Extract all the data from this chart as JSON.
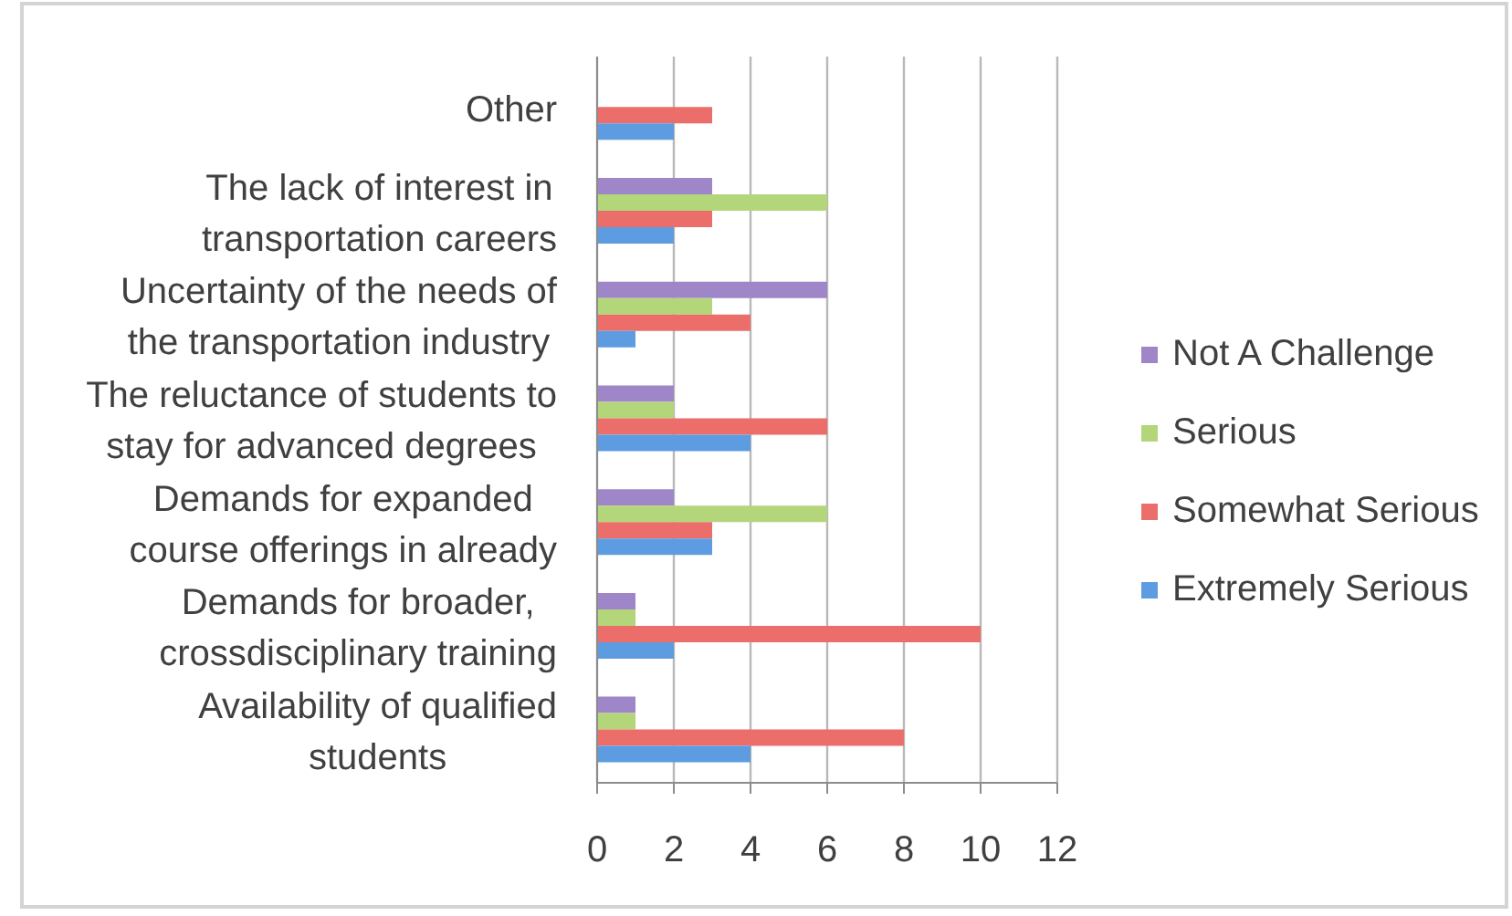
{
  "chart_data": {
    "type": "bar",
    "orientation": "horizontal",
    "categories": [
      "Other",
      "The lack of interest in transportation careers",
      "Uncertainty of the needs of the transportation industry",
      "The reluctance of students to stay for advanced degrees",
      "Demands for expanded course offerings in already",
      "Demands for broader, crossdisciplinary training",
      "Availability of qualified students"
    ],
    "series": [
      {
        "name": "Not A Challenge",
        "color": "#9e86c8",
        "values": [
          0,
          3,
          6,
          2,
          2,
          1,
          1
        ]
      },
      {
        "name": "Serious",
        "color": "#b3d67a",
        "values": [
          0,
          6,
          3,
          2,
          6,
          1,
          1
        ]
      },
      {
        "name": "Somewhat Serious",
        "color": "#eb6e6a",
        "values": [
          3,
          3,
          4,
          6,
          3,
          10,
          8
        ]
      },
      {
        "name": "Extremely Serious",
        "color": "#5d9ce0",
        "values": [
          2,
          2,
          1,
          4,
          3,
          2,
          4
        ]
      }
    ],
    "xlim": [
      0,
      12
    ],
    "xticks": [
      0,
      2,
      4,
      6,
      8,
      10,
      12
    ],
    "grid": "x",
    "legend": "right"
  }
}
